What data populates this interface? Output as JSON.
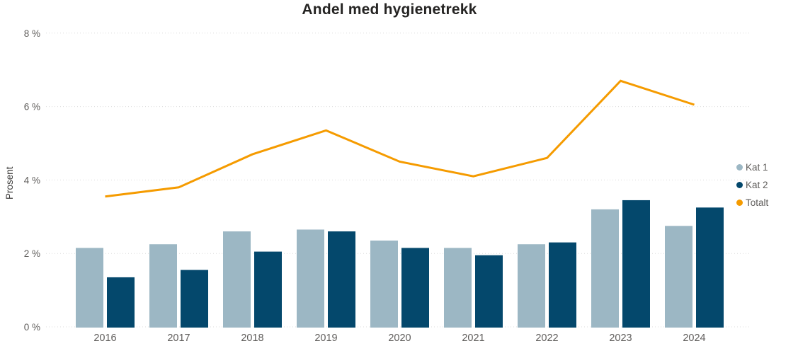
{
  "title": "Andel med hygienetrekk",
  "colors": {
    "kat1": "#9CB7C4",
    "kat2": "#04486C",
    "totalt": "#F59B00",
    "grid": "#DCDCDC",
    "axis_text": "#605E5C",
    "title_text": "#252423"
  },
  "legend": {
    "items": [
      {
        "label": "Kat 1",
        "color": "#9CB7C4"
      },
      {
        "label": "Kat 2",
        "color": "#04486C"
      },
      {
        "label": "Totalt",
        "color": "#F59B00"
      }
    ]
  },
  "chart_data": {
    "type": "bar",
    "subtype": "grouped-bars-with-line-overlay",
    "title": "Andel med hygienetrekk",
    "xlabel": "",
    "ylabel": "Prosent",
    "categories": [
      "2016",
      "2017",
      "2018",
      "2019",
      "2020",
      "2021",
      "2022",
      "2023",
      "2024"
    ],
    "series": [
      {
        "name": "Kat 1",
        "type": "bar",
        "color": "#9CB7C4",
        "values": [
          2.15,
          2.25,
          2.6,
          2.65,
          2.35,
          2.15,
          2.25,
          3.2,
          2.75
        ]
      },
      {
        "name": "Kat 2",
        "type": "bar",
        "color": "#04486C",
        "values": [
          1.35,
          1.55,
          2.05,
          2.6,
          2.15,
          1.95,
          2.3,
          3.45,
          3.25
        ]
      },
      {
        "name": "Totalt",
        "type": "line",
        "color": "#F59B00",
        "values": [
          3.55,
          3.8,
          4.7,
          5.35,
          4.5,
          4.1,
          4.6,
          6.7,
          6.05
        ]
      }
    ],
    "ylim": [
      0,
      8
    ],
    "yticks": [
      0,
      2,
      4,
      6,
      8
    ],
    "ytick_labels": [
      "0 %",
      "2 %",
      "4 %",
      "6 %",
      "8 %"
    ],
    "grid": "horizontal-dotted",
    "legend_position": "right"
  }
}
